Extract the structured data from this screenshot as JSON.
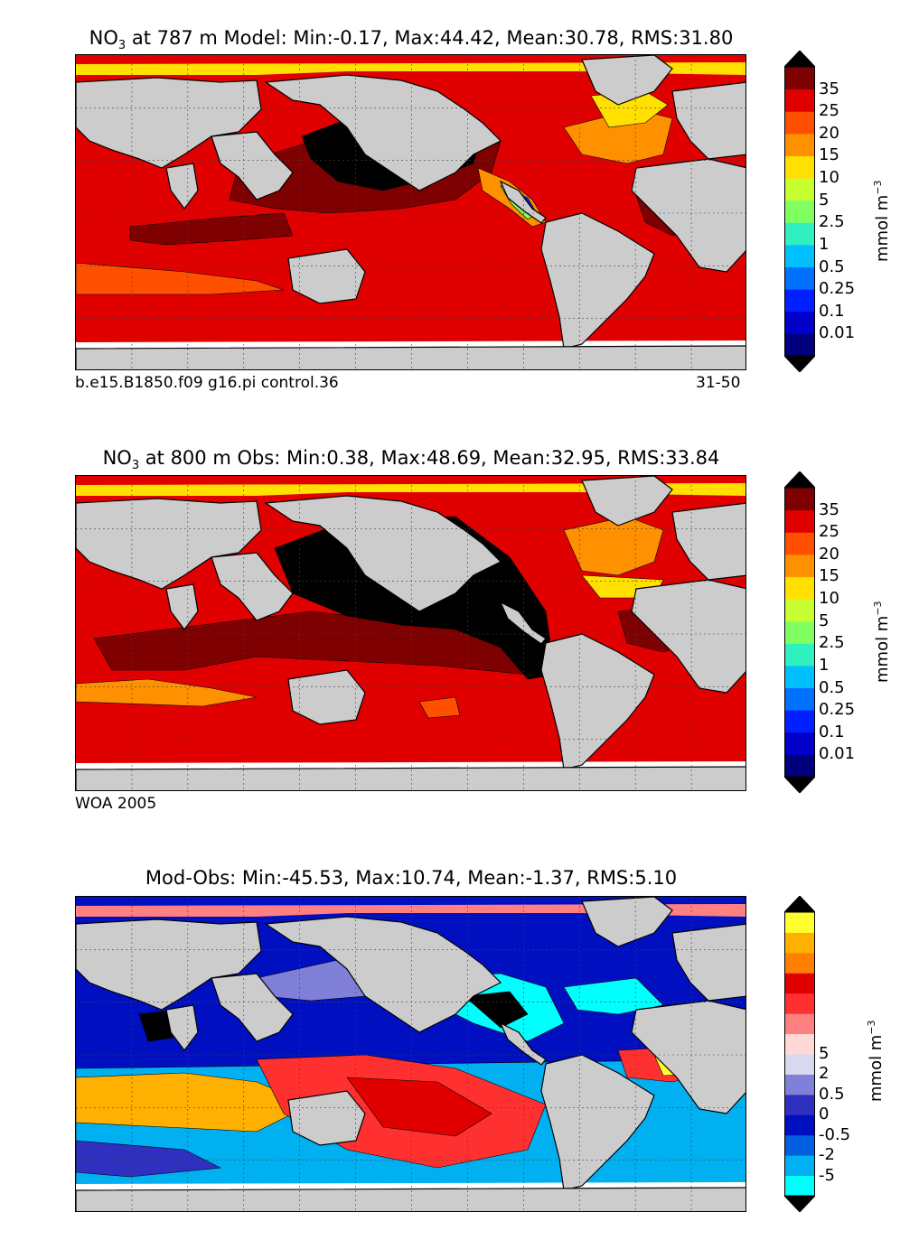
{
  "panels": [
    {
      "title_prefix": "NO",
      "title_sub": "3",
      "title_rest": " at 787 m Model: Min:-0.17, Max:44.42, Mean:30.78, RMS:31.80",
      "foot_left": "b.e15.B1850.f09 g16.pi control.36",
      "foot_right": "31-50",
      "unit_main": "mmol m",
      "unit_sup": "−3"
    },
    {
      "title_prefix": "NO",
      "title_sub": "3",
      "title_rest": " at 800 m Obs: Min:0.38, Max:48.69, Mean:32.95, RMS:33.84",
      "foot_left": "WOA 2005",
      "foot_right": "",
      "unit_main": "mmol m",
      "unit_sup": "−3"
    },
    {
      "title_prefix": "",
      "title_sub": "",
      "title_rest": "Mod-Obs: Min:-45.53, Max:10.74, Mean:-1.37, RMS:5.10",
      "foot_left": "",
      "foot_right": "",
      "unit_main": "mmol m",
      "unit_sup": "−3"
    }
  ],
  "chart_data": [
    {
      "type": "heatmap",
      "title": "NO3 at 787 m Model: Min:-0.17, Max:44.42, Mean:30.78, RMS:31.80",
      "stats": {
        "min": -0.17,
        "max": 44.42,
        "mean": 30.78,
        "rms": 31.8
      },
      "depth_m": 787,
      "colorbar": {
        "ticks": [
          "0.01",
          "0.1",
          "0.25",
          "0.5",
          "1",
          "2.5",
          "5",
          "10",
          "15",
          "20",
          "25",
          "35"
        ],
        "colors": [
          "#00007f",
          "#0000c8",
          "#0020ff",
          "#0070ff",
          "#00c0ff",
          "#30f0c0",
          "#80ff60",
          "#c8ff30",
          "#ffe000",
          "#ff9000",
          "#ff5000",
          "#e00000",
          "#7f0000"
        ],
        "extend": "both",
        "unit": "mmol m^-3"
      },
      "case": "b.e15.B1850.f09 g16.pi control.36",
      "years": "31-50"
    },
    {
      "type": "heatmap",
      "title": "NO3 at 800 m Obs: Min:0.38, Max:48.69, Mean:32.95, RMS:33.84",
      "stats": {
        "min": 0.38,
        "max": 48.69,
        "mean": 32.95,
        "rms": 33.84
      },
      "depth_m": 800,
      "colorbar": {
        "ticks": [
          "0.01",
          "0.1",
          "0.25",
          "0.5",
          "1",
          "2.5",
          "5",
          "10",
          "15",
          "20",
          "25",
          "35"
        ],
        "colors": [
          "#00007f",
          "#0000c8",
          "#0020ff",
          "#0070ff",
          "#00c0ff",
          "#30f0c0",
          "#80ff60",
          "#c8ff30",
          "#ffe000",
          "#ff9000",
          "#ff5000",
          "#e00000",
          "#7f0000"
        ],
        "extend": "both",
        "unit": "mmol m^-3"
      },
      "source": "WOA 2005"
    },
    {
      "type": "heatmap",
      "title": "Mod-Obs: Min:-45.53, Max:10.74, Mean:-1.37, RMS:5.10",
      "stats": {
        "min": -45.53,
        "max": 10.74,
        "mean": -1.37,
        "rms": 5.1
      },
      "colorbar": {
        "ticks": [
          "-5",
          "-2",
          "-0.5",
          "0",
          "0.5",
          "2",
          "5"
        ],
        "colors": [
          "#00ffff",
          "#00b0f0",
          "#0060e0",
          "#0010c0",
          "#3030c0",
          "#8080d8",
          "#d8d8f0",
          "#ffd8d8",
          "#ff8080",
          "#ff3030",
          "#e00000",
          "#ff8000",
          "#ffb000",
          "#ffff30"
        ],
        "extend": "both",
        "unit": "mmol m^-3"
      }
    }
  ]
}
